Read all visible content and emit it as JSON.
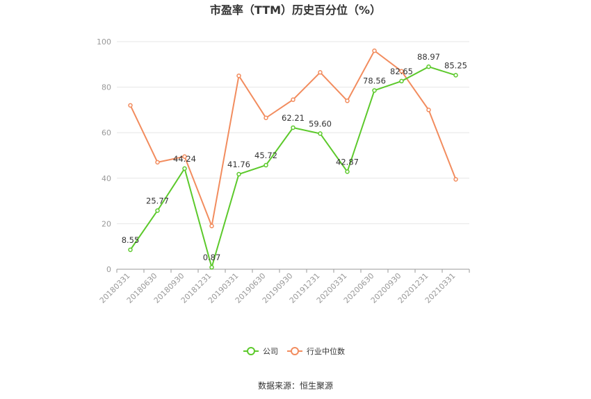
{
  "chart_data": {
    "type": "line",
    "title": "市盈率（TTM）历史百分位（%）",
    "categories": [
      "20180331",
      "20180630",
      "20180930",
      "20181231",
      "20190331",
      "20190630",
      "20190930",
      "20191231",
      "20200331",
      "20200630",
      "20200930",
      "20201231",
      "20210331"
    ],
    "ylim": [
      0,
      100
    ],
    "yticks": [
      0,
      20,
      40,
      60,
      80,
      100
    ],
    "grid": true,
    "legend_position": "bottom",
    "series": [
      {
        "name": "公司",
        "color": "#5cc92b",
        "values": [
          8.55,
          25.77,
          44.24,
          0.87,
          41.76,
          45.72,
          62.21,
          59.6,
          42.87,
          78.56,
          82.65,
          88.97,
          85.25
        ],
        "labels": [
          "8.55",
          "25.77",
          "44.24",
          "0.87",
          "41.76",
          "45.72",
          "62.21",
          "59.60",
          "42.87",
          "78.56",
          "82.65",
          "88.97",
          "85.25"
        ]
      },
      {
        "name": "行业中位数",
        "color": "#f28c5e",
        "values": [
          72,
          47,
          49.5,
          19,
          85,
          66.5,
          74.5,
          86.5,
          74,
          96,
          87,
          70,
          39.5
        ]
      }
    ]
  },
  "source": "数据来源：恒生聚源"
}
